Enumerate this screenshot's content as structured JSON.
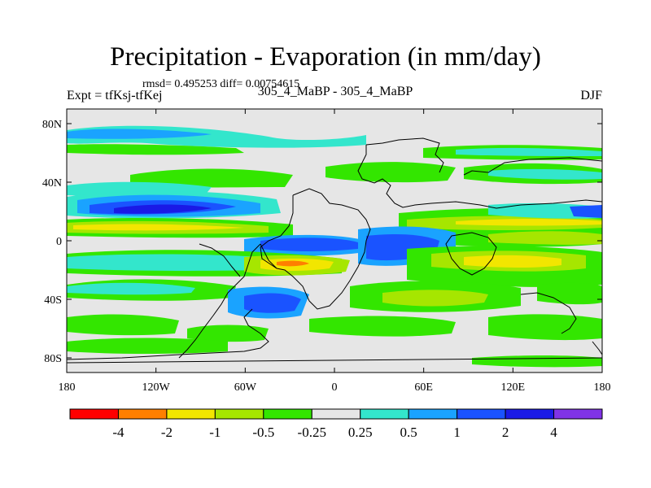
{
  "chart_data": {
    "type": "heatmap",
    "title": "Precipitation - Evaporation (in mm/day)",
    "subtitle": "rmsd= 0.495253 diff= 0.00754615",
    "left_label": "Expt = tfKsj-tfKej",
    "center_label": "305_4_MaBP - 305_4_MaBP",
    "right_label": "DJF",
    "x_ticks": [
      "180",
      "120W",
      "60W",
      "0",
      "60E",
      "120E",
      "180"
    ],
    "x_range": [
      -180,
      180
    ],
    "y_ticks": [
      "80N",
      "40N",
      "0",
      "40S",
      "80S"
    ],
    "y_tick_values": [
      80,
      40,
      0,
      -40,
      -80
    ],
    "y_range": [
      -90,
      90
    ],
    "colorbar": {
      "colors": [
        "#ff0000",
        "#ff7f00",
        "#f2e600",
        "#a6e600",
        "#33e600",
        "#e6e6e6",
        "#33e6cc",
        "#1aa3ff",
        "#1a53ff",
        "#1a1ae6",
        "#8033e6"
      ],
      "levels": [
        "-4",
        "-2",
        "-1",
        "-0.5",
        "-0.25",
        "0.25",
        "0.5",
        "1",
        "2",
        "4"
      ]
    }
  }
}
